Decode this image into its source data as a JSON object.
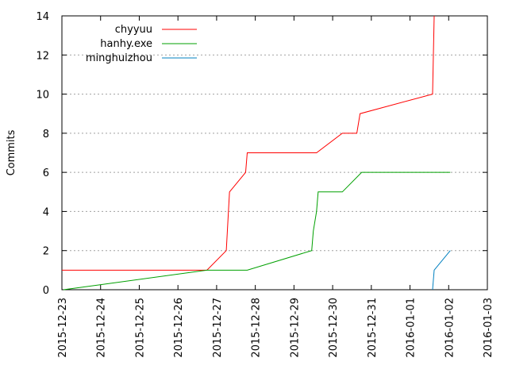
{
  "chart_data": {
    "type": "line",
    "title": "",
    "xlabel": "",
    "ylabel": "Commits",
    "xlim": [
      "2015-12-23",
      "2016-01-03"
    ],
    "ylim": [
      0,
      14
    ],
    "yticks": [
      0,
      2,
      4,
      6,
      8,
      10,
      12,
      14
    ],
    "xticks": [
      "2015-12-23",
      "2015-12-24",
      "2015-12-25",
      "2015-12-26",
      "2015-12-27",
      "2015-12-28",
      "2015-12-29",
      "2015-12-30",
      "2015-12-31",
      "2016-01-01",
      "2016-01-02",
      "2016-01-03"
    ],
    "grid": "horizontal dotted",
    "legend_position": "top-left",
    "series": [
      {
        "name": "chyyuu",
        "color": "#ff0000",
        "points": [
          [
            "2015-12-23 00:00",
            1
          ],
          [
            "2015-12-26 18:00",
            1
          ],
          [
            "2015-12-27 06:00",
            2
          ],
          [
            "2015-12-27 08:00",
            5
          ],
          [
            "2015-12-27 18:00",
            6
          ],
          [
            "2015-12-27 19:00",
            7
          ],
          [
            "2015-12-29 14:00",
            7
          ],
          [
            "2015-12-30 06:00",
            8
          ],
          [
            "2015-12-30 15:00",
            8
          ],
          [
            "2015-12-30 17:00",
            9
          ],
          [
            "2016-01-01 14:00",
            10
          ],
          [
            "2016-01-01 15:00",
            14
          ]
        ]
      },
      {
        "name": "hanhy.exe",
        "color": "#00a000",
        "points": [
          [
            "2015-12-23 01:00",
            0
          ],
          [
            "2015-12-26 18:00",
            1
          ],
          [
            "2015-12-27 19:00",
            1
          ],
          [
            "2015-12-29 11:00",
            2
          ],
          [
            "2015-12-29 12:00",
            3
          ],
          [
            "2015-12-29 14:00",
            4
          ],
          [
            "2015-12-29 15:00",
            5
          ],
          [
            "2015-12-30 06:00",
            5
          ],
          [
            "2015-12-30 18:00",
            6
          ],
          [
            "2016-01-02 01:00",
            6
          ]
        ]
      },
      {
        "name": "minghuizhou",
        "color": "#0080c0",
        "points": [
          [
            "2016-01-01 14:00",
            0
          ],
          [
            "2016-01-01 15:00",
            1
          ],
          [
            "2016-01-02 01:00",
            2
          ]
        ]
      }
    ]
  }
}
